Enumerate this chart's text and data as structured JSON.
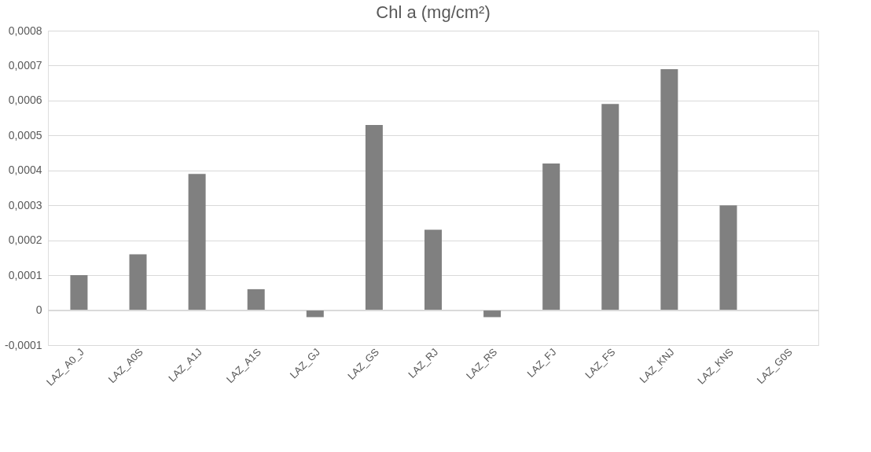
{
  "chart_data": {
    "type": "bar",
    "title": "Chl a (mg/cm²)",
    "categories": [
      "LAZ_A0_J",
      "LAZ_A0S",
      "LAZ_A1J",
      "LAZ_A1S",
      "LAZ_GJ",
      "LAZ_GS",
      "LAZ_RJ",
      "LAZ_RS",
      "LAZ_FJ",
      "LAZ_FS",
      "LAZ_KNJ",
      "LAZ_KNS",
      "LAZ_G0S"
    ],
    "values": [
      0.0001,
      0.00016,
      0.00039,
      6e-05,
      -2e-05,
      0.00053,
      0.00023,
      -2e-05,
      0.00042,
      0.00059,
      0.00069,
      0.0003,
      0
    ],
    "color": "#808080",
    "ylim": [
      -0.0001,
      0.0008
    ],
    "yticks": [
      {
        "value": -0.0001,
        "label": "-0,0001"
      },
      {
        "value": 0,
        "label": "0"
      },
      {
        "value": 0.0001,
        "label": "0,0001"
      },
      {
        "value": 0.0002,
        "label": "0,0002"
      },
      {
        "value": 0.0003,
        "label": "0,0003"
      },
      {
        "value": 0.0004,
        "label": "0,0004"
      },
      {
        "value": 0.0005,
        "label": "0,0005"
      },
      {
        "value": 0.0006,
        "label": "0,0006"
      },
      {
        "value": 0.0007,
        "label": "0,0007"
      },
      {
        "value": 0.0008,
        "label": "0,0008"
      }
    ],
    "grid": "y"
  }
}
